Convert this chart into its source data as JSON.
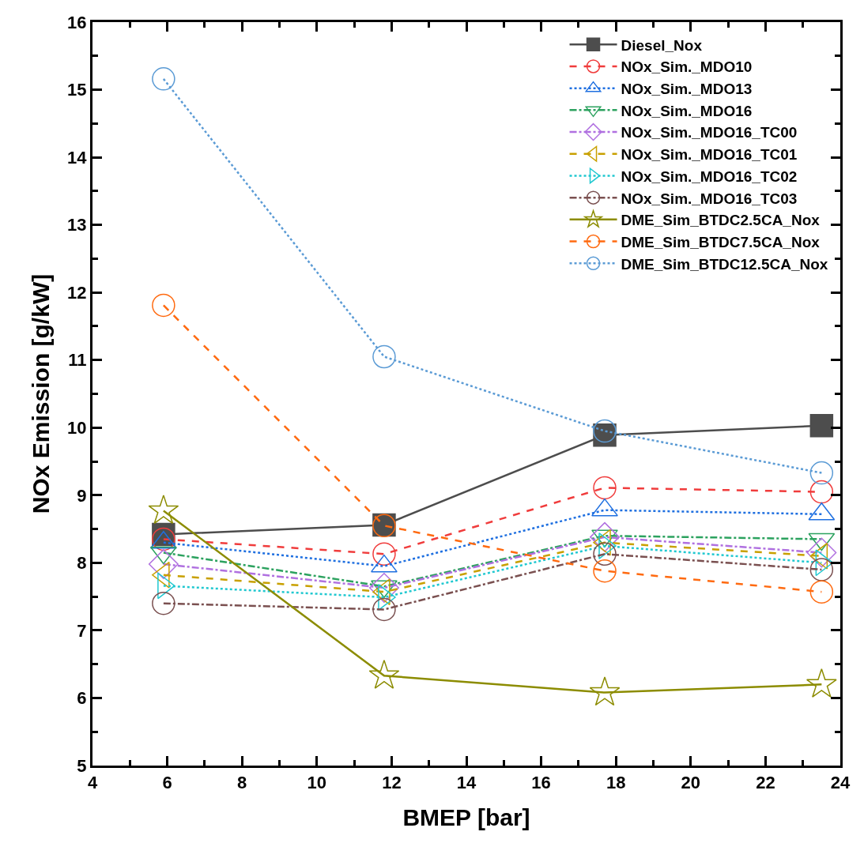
{
  "chart_data": {
    "type": "line",
    "xlabel": "BMEP [bar]",
    "ylabel": "NOx Emission [g/kW]",
    "xlim": [
      4,
      24
    ],
    "xticks": [
      4,
      6,
      8,
      10,
      12,
      14,
      16,
      18,
      20,
      22,
      24
    ],
    "ylim": [
      5,
      16
    ],
    "yticks": [
      5,
      6,
      7,
      8,
      9,
      10,
      11,
      12,
      13,
      14,
      15,
      16
    ],
    "grid": false,
    "legend": "top right",
    "x": [
      5.9,
      11.8,
      17.7,
      23.5
    ],
    "series": [
      {
        "name": "Diesel_Nox",
        "color": "#4d4d4d",
        "marker": "square",
        "line_style": "solid",
        "values": [
          8.42,
          8.56,
          9.89,
          10.03
        ]
      },
      {
        "name": "NOx_Sim._MDO10",
        "color": "#f03c3c",
        "marker": "circle",
        "line_style": "dashed",
        "values": [
          8.35,
          8.13,
          9.11,
          9.05
        ]
      },
      {
        "name": "NOx_Sim._MDO13",
        "color": "#1e6fe0",
        "marker": "triangle",
        "line_style": "dotted",
        "values": [
          8.3,
          7.95,
          8.78,
          8.72
        ]
      },
      {
        "name": "NOx_Sim._MDO16",
        "color": "#2ca25f",
        "marker": "triangle-down",
        "line_style": "dashdot",
        "values": [
          8.15,
          7.65,
          8.4,
          8.35
        ]
      },
      {
        "name": "NOx_Sim._MDO16_TC00",
        "color": "#b070e0",
        "marker": "diamond",
        "line_style": "dashdot",
        "values": [
          7.98,
          7.63,
          8.38,
          8.15
        ]
      },
      {
        "name": "NOx_Sim._MDO16_TC01",
        "color": "#c8a000",
        "marker": "triangle-left",
        "line_style": "dashed",
        "values": [
          7.82,
          7.57,
          8.3,
          8.1
        ]
      },
      {
        "name": "NOx_Sim._MDO16_TC02",
        "color": "#20c8d0",
        "marker": "triangle-right",
        "line_style": "dotted",
        "values": [
          7.66,
          7.49,
          8.25,
          8.0
        ]
      },
      {
        "name": "NOx_Sim._MDO16_TC03",
        "color": "#7a5050",
        "marker": "circle",
        "line_style": "dashdot",
        "values": [
          7.4,
          7.31,
          8.13,
          7.9
        ]
      },
      {
        "name": "DME_Sim_BTDC2.5CA_Nox",
        "color": "#8c8c00",
        "marker": "star",
        "line_style": "solid",
        "values": [
          8.77,
          6.33,
          6.08,
          6.2
        ]
      },
      {
        "name": "DME_Sim_BTDC7.5CA_Nox",
        "color": "#ff6a10",
        "marker": "circle",
        "line_style": "dashed",
        "values": [
          11.81,
          8.55,
          7.88,
          7.57
        ]
      },
      {
        "name": "DME_Sim_BTDC12.5CA_Nox",
        "color": "#5b9bd5",
        "marker": "circle",
        "line_style": "dotted",
        "values": [
          15.16,
          11.05,
          9.95,
          9.33
        ]
      }
    ]
  }
}
